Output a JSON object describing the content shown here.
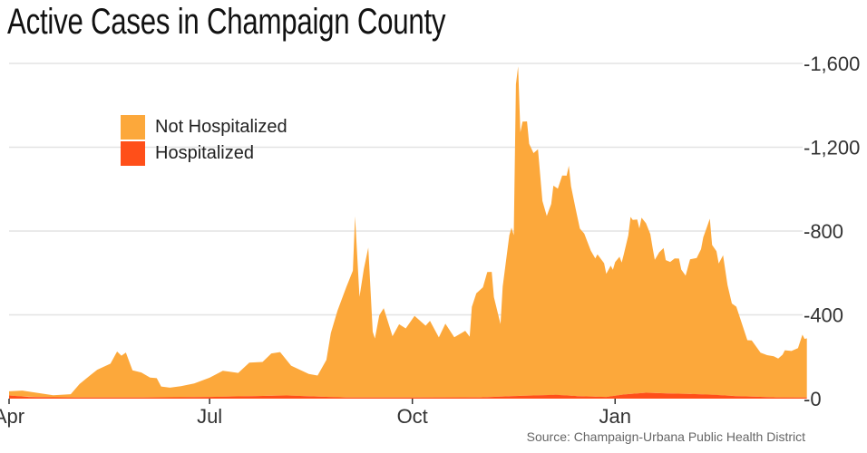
{
  "title": "Active Cases in Champaign County",
  "source": "Source: Champaign-Urbana Public Health District",
  "colors": {
    "not_hospitalized": "#FCA83B",
    "hospitalized": "#FF4F19",
    "grid": "#e3e3e3"
  },
  "chart_data": {
    "type": "area",
    "stacked": true,
    "title": "Active Cases in Champaign County",
    "xlabel": "",
    "ylabel": "",
    "xlim": [
      "2020-04-01",
      "2021-03-29"
    ],
    "ylim": [
      0,
      1600
    ],
    "y_ticks": [
      0,
      400,
      800,
      1200,
      1600
    ],
    "y_tick_labels": [
      "0",
      "400",
      "800",
      "1,200",
      "1,600"
    ],
    "x_ticks": [
      "2020-04-01",
      "2020-07-01",
      "2020-10-01",
      "2021-01-01"
    ],
    "x_tick_labels": [
      "Apr",
      "Jul",
      "Oct",
      "Jan"
    ],
    "grid": true,
    "y_axis_side": "right",
    "legend_placement": "top-left",
    "series": [
      {
        "name": "Not Hospitalized",
        "dates": [
          "2020-04-01",
          "2020-04-07",
          "2020-04-21",
          "2020-04-29",
          "2020-05-03",
          "2020-05-08",
          "2020-05-11",
          "2020-05-17",
          "2020-05-20",
          "2020-05-22",
          "2020-05-24",
          "2020-05-27",
          "2020-05-31",
          "2020-06-04",
          "2020-06-07",
          "2020-06-09",
          "2020-06-13",
          "2020-06-18",
          "2020-06-24",
          "2020-07-01",
          "2020-07-07",
          "2020-07-14",
          "2020-07-19",
          "2020-07-25",
          "2020-07-29",
          "2020-08-02",
          "2020-08-07",
          "2020-08-15",
          "2020-08-19",
          "2020-08-23",
          "2020-08-25",
          "2020-08-28",
          "2020-09-01",
          "2020-09-04",
          "2020-09-05",
          "2020-09-07",
          "2020-09-09",
          "2020-09-11",
          "2020-09-13",
          "2020-09-14",
          "2020-09-16",
          "2020-09-18",
          "2020-09-22",
          "2020-09-25",
          "2020-09-28",
          "2020-10-02",
          "2020-10-07",
          "2020-10-09",
          "2020-10-13",
          "2020-10-16",
          "2020-10-20",
          "2020-10-25",
          "2020-10-27",
          "2020-10-28",
          "2020-10-30",
          "2020-11-02",
          "2020-11-04",
          "2020-11-06",
          "2020-11-07",
          "2020-11-10",
          "2020-11-11",
          "2020-11-14",
          "2020-11-15",
          "2020-11-16",
          "2020-11-17",
          "2020-11-18",
          "2020-11-19",
          "2020-11-20",
          "2020-11-22",
          "2020-11-23",
          "2020-11-25",
          "2020-11-27",
          "2020-11-29",
          "2020-12-01",
          "2020-12-03",
          "2020-12-04",
          "2020-12-06",
          "2020-12-08",
          "2020-12-10",
          "2020-12-11",
          "2020-12-12",
          "2020-12-14",
          "2020-12-16",
          "2020-12-18",
          "2020-12-21",
          "2020-12-23",
          "2020-12-24",
          "2020-12-27",
          "2020-12-28",
          "2020-12-30",
          "2020-12-31",
          "2021-01-01",
          "2021-01-03",
          "2021-01-04",
          "2021-01-05",
          "2021-01-07",
          "2021-01-08",
          "2021-01-09",
          "2021-01-11",
          "2021-01-12",
          "2021-01-13",
          "2021-01-15",
          "2021-01-17",
          "2021-01-18",
          "2021-01-19",
          "2021-01-21",
          "2021-01-23",
          "2021-01-24",
          "2021-01-26",
          "2021-01-28",
          "2021-01-30",
          "2021-01-31",
          "2021-02-02",
          "2021-02-04",
          "2021-02-07",
          "2021-02-09",
          "2021-02-10",
          "2021-02-11",
          "2021-02-13",
          "2021-02-14",
          "2021-02-16",
          "2021-02-17",
          "2021-02-19",
          "2021-02-21",
          "2021-02-23",
          "2021-02-25",
          "2021-03-02",
          "2021-03-04",
          "2021-03-08",
          "2021-03-11",
          "2021-03-14",
          "2021-03-16",
          "2021-03-18",
          "2021-03-19",
          "2021-03-22",
          "2021-03-25",
          "2021-03-27",
          "2021-03-28",
          "2021-03-29"
        ],
        "values": [
          20,
          28,
          10,
          16,
          65,
          108,
          133,
          162,
          220,
          200,
          215,
          130,
          120,
          95,
          92,
          52,
          46,
          53,
          65,
          92,
          124,
          112,
          160,
          162,
          202,
          208,
          143,
          106,
          100,
          176,
          305,
          413,
          527,
          606,
          865,
          480,
          614,
          716,
          314,
          282,
          393,
          427,
          293,
          350,
          330,
          390,
          343,
          366,
          287,
          352,
          287,
          318,
          290,
          432,
          497,
          525,
          597,
          597,
          476,
          346,
          525,
          768,
          804,
          768,
          1488,
          1573,
          1258,
          1309,
          1309,
          1202,
          1157,
          1175,
          928,
          855,
          912,
          999,
          985,
          1049,
          1049,
          1097,
          999,
          898,
          800,
          777,
          696,
          660,
          679,
          638,
          588,
          624,
          603,
          638,
          660,
          631,
          672,
          758,
          845,
          830,
          830,
          787,
          837,
          809,
          758,
          693,
          636,
          672,
          693,
          636,
          628,
          645,
          645,
          593,
          564,
          643,
          650,
          693,
          751,
          780,
          840,
          715,
          686,
          628,
          669,
          528,
          441,
          427,
          268,
          268,
          211,
          200,
          196,
          185,
          204,
          225,
          222,
          236,
          300,
          280,
          283
        ]
      },
      {
        "name": "Hospitalized",
        "dates": [
          "2020-04-01",
          "2020-04-10",
          "2020-05-01",
          "2020-06-01",
          "2020-07-01",
          "2020-07-20",
          "2020-08-05",
          "2020-08-20",
          "2020-09-01",
          "2020-10-01",
          "2020-11-01",
          "2020-11-15",
          "2020-11-25",
          "2020-12-05",
          "2020-12-15",
          "2020-12-28",
          "2021-01-05",
          "2021-01-15",
          "2021-01-25",
          "2021-02-05",
          "2021-02-15",
          "2021-02-25",
          "2021-03-05",
          "2021-03-15",
          "2021-03-29"
        ],
        "values": [
          15,
          8,
          5,
          5,
          8,
          12,
          15,
          10,
          5,
          5,
          6,
          12,
          15,
          18,
          12,
          8,
          20,
          28,
          25,
          22,
          18,
          12,
          10,
          6,
          5
        ]
      }
    ]
  }
}
